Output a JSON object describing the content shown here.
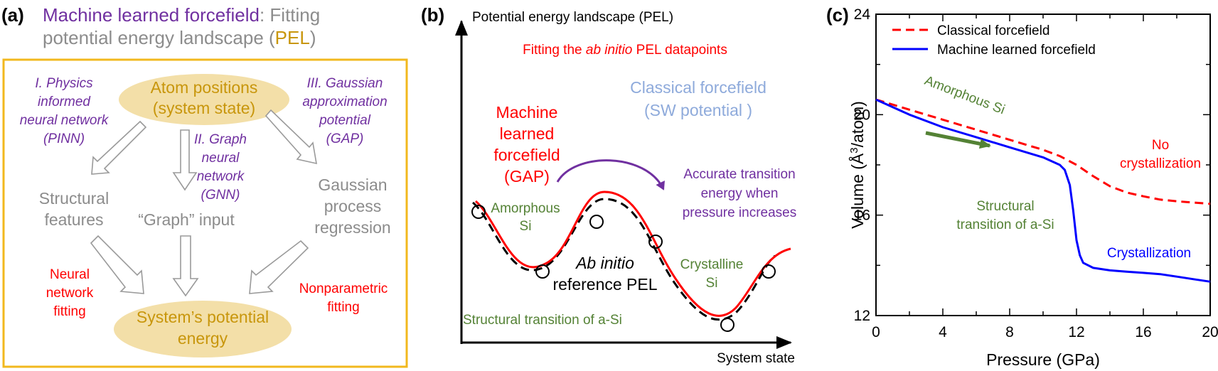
{
  "colors": {
    "purple": "#7030a0",
    "gray": "#8c8c8c",
    "gold": "#c8960c",
    "gold_fill": "#f3dfa8",
    "red": "#ff0000",
    "blue": "#0000ff",
    "green": "#548235",
    "light_blue": "#8eaadb",
    "black": "#000000"
  },
  "panel_a": {
    "label": "(a)",
    "title": {
      "part1": "Machine learned forcefield",
      "part2": ": Fitting",
      "line2a": "potential energy landscape (",
      "line2b": "PEL",
      "line2c": ")"
    },
    "top_node": [
      "Atom positions",
      "(system state)"
    ],
    "methods": {
      "pinn": [
        "I. Physics",
        "informed",
        "neural network",
        "(PINN)"
      ],
      "gnn": [
        "II. Graph",
        "neural",
        "network",
        "(GNN)"
      ],
      "gap": [
        "III. Gaussian",
        "approximation",
        "potential",
        "(GAP)"
      ]
    },
    "middle": {
      "structural": [
        "Structural",
        "features"
      ],
      "graph": "“Graph” input",
      "gpr": [
        "Gaussian",
        "process",
        "regression"
      ]
    },
    "fits": {
      "neural": [
        "Neural",
        "network",
        "fitting"
      ],
      "nonparametric": [
        "Nonparametric",
        "fitting"
      ]
    },
    "bottom_node": [
      "System’s potential",
      "energy"
    ]
  },
  "panel_b": {
    "label": "(b)",
    "y_axis_label": "Potential energy landscape (PEL)",
    "x_axis_label": "System state",
    "fitting_title": {
      "before": "Fitting the ",
      "italic": "ab initio",
      "after": " PEL datapoints"
    },
    "classical": [
      "Classical forcefield",
      "(SW potential )"
    ],
    "ml": [
      "Machine",
      "learned",
      "forcefield",
      "(GAP)"
    ],
    "accurate": [
      "Accurate transition",
      "energy when",
      "pressure increases"
    ],
    "amorphous": [
      "Amorphous",
      "Si"
    ],
    "crystalline": [
      "Crystalline",
      "Si"
    ],
    "abinitio": {
      "italic": "Ab initio",
      "line2": "reference PEL"
    },
    "structural_transition": "Structural transition of a-Si"
  },
  "panel_c": {
    "label": "(c)",
    "legend": [
      "Classical forcefield",
      "Machine learned forcefield"
    ],
    "annotations": {
      "amorphous": "Amorphous Si",
      "no_cryst": [
        "No",
        "crystallization"
      ],
      "structural": [
        "Structural",
        "transition of a-Si"
      ],
      "cryst": "Crystallization"
    }
  },
  "chart_data": {
    "type": "line",
    "title": "",
    "xlabel": "Pressure (GPa)",
    "ylabel_prefix": "Volume (",
    "ylabel_unit": "Å",
    "ylabel_sup": "3",
    "ylabel_suffix": "/atom)",
    "xlim": [
      0,
      20
    ],
    "ylim": [
      12,
      24
    ],
    "x_ticks": [
      "0",
      "4",
      "8",
      "12",
      "16",
      "20"
    ],
    "y_ticks": [
      "12",
      "16",
      "20",
      "24"
    ],
    "legend_position": "top-left",
    "series": [
      {
        "name": "Classical forcefield",
        "style": "dashed",
        "color": "#ff0000",
        "x": [
          0,
          2,
          4,
          6,
          8,
          10,
          11,
          12,
          13,
          14,
          15,
          16,
          17,
          18,
          19,
          20
        ],
        "y": [
          20.6,
          20.2,
          19.8,
          19.4,
          19.0,
          18.6,
          18.35,
          18.0,
          17.55,
          17.15,
          16.9,
          16.75,
          16.62,
          16.55,
          16.5,
          16.45
        ]
      },
      {
        "name": "Machine learned forcefield",
        "style": "solid",
        "color": "#0000ff",
        "x": [
          0,
          2,
          4,
          6,
          8,
          10,
          11,
          11.3,
          11.6,
          11.8,
          12.0,
          12.2,
          12.4,
          13,
          14,
          15,
          16,
          17,
          18,
          19,
          20
        ],
        "y": [
          20.6,
          20.0,
          19.5,
          19.1,
          18.7,
          18.3,
          18.0,
          17.8,
          17.2,
          16.2,
          15.0,
          14.4,
          14.1,
          13.9,
          13.8,
          13.75,
          13.7,
          13.65,
          13.55,
          13.45,
          13.35
        ]
      }
    ]
  }
}
